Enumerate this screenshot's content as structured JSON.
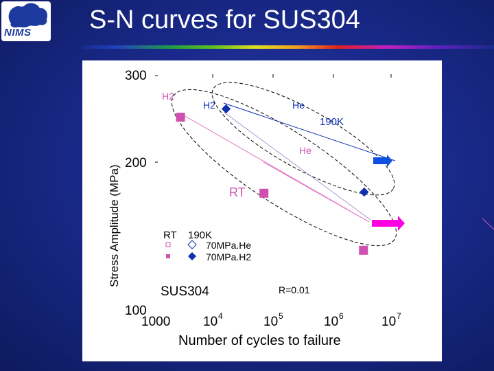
{
  "slide": {
    "title": "S-N curves for SUS304",
    "logo_text": "NIMS"
  },
  "colors": {
    "background": "#1a2a8c",
    "rt_series": "#d050b0",
    "k190_series": "#1030b0",
    "rt_arrow": "#ff00e0",
    "k190_arrow": "#1050e0"
  },
  "chart_data": {
    "type": "scatter",
    "xlabel": "Number of cycles to failure",
    "ylabel": "Stress Amplitude (MPa)",
    "x_scale": "log",
    "xlim": [
      1000,
      10000000
    ],
    "ylim": [
      100,
      300
    ],
    "x_tick_labels": [
      "1000",
      "10",
      "10",
      "10",
      "10"
    ],
    "x_tick_exponents": [
      "",
      "4",
      "5",
      "6",
      "7"
    ],
    "y_tick_labels": [
      "300",
      "200",
      "100"
    ],
    "series": [
      {
        "name": "70MPa.H2 RT",
        "marker": "filled-square",
        "color": "#d050b0",
        "points": [
          {
            "x": 2700,
            "y": 265
          },
          {
            "x": 70000,
            "y": 201
          }
        ]
      },
      {
        "name": "70MPa.H2 190K",
        "marker": "filled-diamond",
        "color": "#1030b0",
        "points": [
          {
            "x": 16000,
            "y": 272
          }
        ]
      },
      {
        "name": "70MPa.He RT",
        "marker": "square",
        "color": "#d050b0",
        "points": [
          {
            "x": 3400000,
            "y": 153
          }
        ],
        "runout": true
      },
      {
        "name": "70MPa.He 190K",
        "marker": "diamond",
        "color": "#1030b0",
        "points": [
          {
            "x": 3500000,
            "y": 202
          }
        ],
        "runout": true
      }
    ],
    "annotations": [
      {
        "text": "H2",
        "color": "#d050b0"
      },
      {
        "text": "H2",
        "color": "#1030b0"
      },
      {
        "text": "He",
        "color": "#1030b0"
      },
      {
        "text": "190K",
        "color": "#1030b0"
      },
      {
        "text": "He",
        "color": "#d050b0"
      },
      {
        "text": "RT",
        "color": "#d050b0"
      },
      {
        "text": "R=0.01",
        "color": "#000000"
      }
    ],
    "legend": {
      "header_rt": "RT",
      "header_190k": "190K",
      "rows": [
        {
          "label": "70MPa.He"
        },
        {
          "label": "70MPa.H2"
        }
      ]
    },
    "material_label": "SUS304",
    "grid": false
  }
}
